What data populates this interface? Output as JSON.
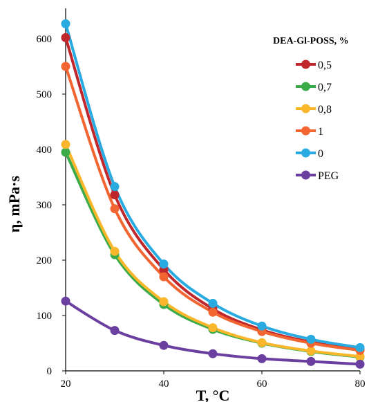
{
  "chart_data": {
    "type": "line",
    "title": "",
    "xlabel": "T, °C",
    "ylabel": "η, mPa·s",
    "xlim": [
      20,
      80
    ],
    "ylim": [
      0,
      700
    ],
    "xticks": [
      20,
      40,
      60,
      80
    ],
    "yticks": [
      0,
      100,
      200,
      300,
      400,
      500,
      600
    ],
    "x": [
      20,
      30,
      40,
      50,
      60,
      70,
      80
    ],
    "legend_title": "DEA-Gl-POSS, %",
    "legend_position": "top-right",
    "grid": false,
    "smooth": true,
    "series": [
      {
        "name": "0,5",
        "color": "#c0272d",
        "values": [
          602,
          318,
          183,
          112,
          74,
          52,
          38
        ]
      },
      {
        "name": "0,7",
        "color": "#3bab4a",
        "values": [
          395,
          210,
          120,
          75,
          50,
          35,
          25
        ]
      },
      {
        "name": "0,8",
        "color": "#fbb72c",
        "values": [
          409,
          216,
          125,
          78,
          51,
          36,
          26
        ]
      },
      {
        "name": "1",
        "color": "#f26531",
        "values": [
          550,
          293,
          170,
          106,
          71,
          50,
          37
        ]
      },
      {
        "name": "0",
        "color": "#29abe2",
        "values": [
          627,
          333,
          193,
          122,
          81,
          57,
          42
        ]
      },
      {
        "name": "PEG",
        "color": "#6b3fa0",
        "values": [
          126,
          73,
          46,
          31,
          22,
          17,
          12
        ]
      }
    ]
  }
}
